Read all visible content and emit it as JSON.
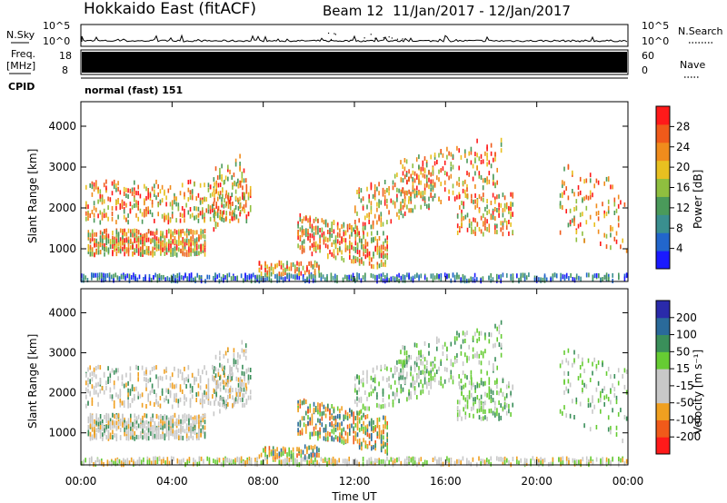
{
  "header": {
    "radar": "Hokkaido East (fitACF)",
    "beam": "Beam 12",
    "dates": "11/Jan/2017 - 12/Jan/2017"
  },
  "top_labels": {
    "nsky": "N.Sky",
    "freq_line1": "Freq.",
    "freq_line2": "[MHz]",
    "cpid": "CPID",
    "nsearch": "N.Search",
    "nave": "Nave",
    "cpid_value": "normal (fast) 151"
  },
  "colors": {
    "power_scale": [
      "#1a1aff",
      "#2266cc",
      "#3a8f8f",
      "#4a9a5a",
      "#8fbf3f",
      "#e8c020",
      "#f08c1c",
      "#f05a1a",
      "#ff1a1a"
    ],
    "velocity_scale": [
      "#ff1a1a",
      "#f05a1a",
      "#f0a020",
      "#c8c8c8",
      "#c8c8c8",
      "#66cc33",
      "#3a8f5a",
      "#2a6a9a",
      "#2a2aaa"
    ]
  },
  "chart_data": [
    {
      "type": "line",
      "name": "nsky-nsearch",
      "left_axis": {
        "label": "N.Sky",
        "ticks": [
          "10^5",
          "10^0"
        ]
      },
      "right_axis": {
        "label": "N.Search",
        "ticks": [
          "10^5",
          "10^0"
        ]
      }
    },
    {
      "type": "area",
      "name": "freq-nave",
      "left_axis": {
        "label": "Freq. [MHz]",
        "ticks": [
          "18",
          "8"
        ]
      },
      "right_axis": {
        "label": "Nave",
        "ticks": [
          "60",
          "0"
        ]
      }
    },
    {
      "type": "heatmap",
      "name": "power",
      "ylabel": "Slant Range [km]",
      "yticks": [
        1000,
        2000,
        3000,
        4000
      ],
      "ylim": [
        200,
        4600
      ],
      "colorbar": {
        "label": "Power [dB]",
        "ticks": [
          "28",
          "24",
          "20",
          "16",
          "12",
          "8",
          "4"
        ]
      }
    },
    {
      "type": "heatmap",
      "name": "velocity",
      "ylabel": "Slant Range [km]",
      "yticks": [
        1000,
        2000,
        3000,
        4000
      ],
      "ylim": [
        200,
        4600
      ],
      "colorbar": {
        "label": "Velocity [m s⁻¹]",
        "ticks": [
          "200",
          "100",
          "50",
          "15",
          "-15",
          "-50",
          "-100",
          "-200"
        ]
      }
    }
  ],
  "x_axis": {
    "label": "Time UT",
    "ticks": [
      "00:00",
      "04:00",
      "08:00",
      "12:00",
      "16:00",
      "20:00",
      "00:00"
    ],
    "range_hours": [
      0,
      24
    ]
  }
}
